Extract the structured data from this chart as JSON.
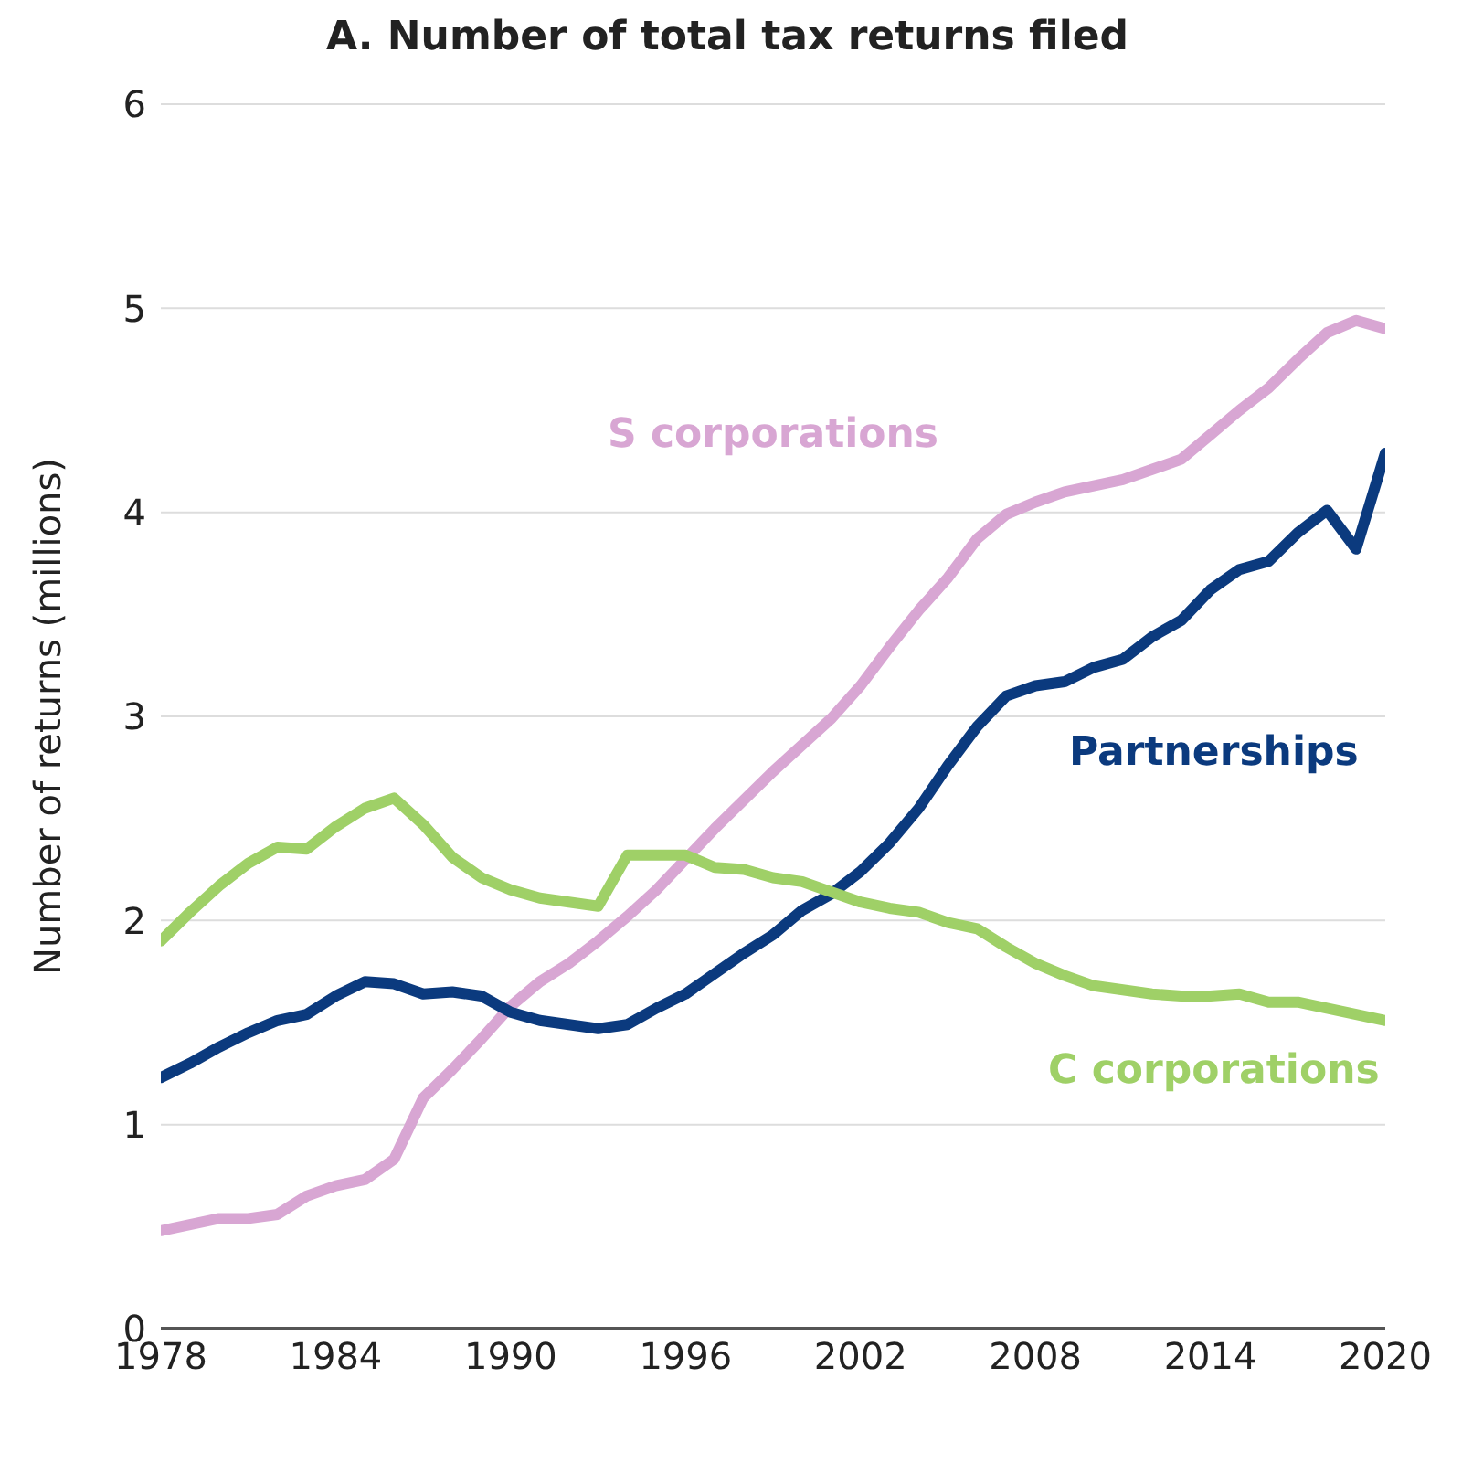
{
  "chart_data": {
    "type": "line",
    "title": "A. Number of total tax returns filed",
    "ylabel": "Number of returns (millions)",
    "x": [
      1978,
      1979,
      1980,
      1981,
      1982,
      1983,
      1984,
      1985,
      1986,
      1987,
      1988,
      1989,
      1990,
      1991,
      1992,
      1993,
      1994,
      1995,
      1996,
      1997,
      1998,
      1999,
      2000,
      2001,
      2002,
      2003,
      2004,
      2005,
      2006,
      2007,
      2008,
      2009,
      2010,
      2011,
      2012,
      2013,
      2014,
      2015,
      2016,
      2017,
      2018,
      2019,
      2020
    ],
    "series": [
      {
        "name": "S corporations",
        "color": "#d8a6d3",
        "values": [
          0.48,
          0.51,
          0.54,
          0.54,
          0.56,
          0.65,
          0.7,
          0.73,
          0.83,
          1.13,
          1.27,
          1.42,
          1.58,
          1.7,
          1.79,
          1.9,
          2.02,
          2.15,
          2.3,
          2.45,
          2.59,
          2.73,
          2.86,
          2.99,
          3.15,
          3.34,
          3.52,
          3.68,
          3.87,
          3.99,
          4.05,
          4.1,
          4.13,
          4.16,
          4.21,
          4.26,
          4.38,
          4.5,
          4.61,
          4.75,
          4.88,
          4.94,
          4.9
        ]
      },
      {
        "name": "Partnerships",
        "color": "#0b3a7e",
        "values": [
          1.23,
          1.3,
          1.38,
          1.45,
          1.51,
          1.54,
          1.63,
          1.7,
          1.69,
          1.64,
          1.65,
          1.63,
          1.55,
          1.51,
          1.49,
          1.47,
          1.49,
          1.57,
          1.64,
          1.74,
          1.84,
          1.93,
          2.05,
          2.13,
          2.24,
          2.38,
          2.55,
          2.76,
          2.95,
          3.1,
          3.15,
          3.17,
          3.24,
          3.28,
          3.39,
          3.47,
          3.62,
          3.72,
          3.76,
          3.9,
          4.01,
          3.82,
          4.29
        ]
      },
      {
        "name": "C corporations",
        "color": "#9fd067",
        "values": [
          1.9,
          2.04,
          2.17,
          2.28,
          2.36,
          2.35,
          2.46,
          2.55,
          2.6,
          2.47,
          2.31,
          2.21,
          2.15,
          2.11,
          2.09,
          2.07,
          2.32,
          2.32,
          2.32,
          2.26,
          2.25,
          2.21,
          2.19,
          2.14,
          2.09,
          2.06,
          2.04,
          1.99,
          1.96,
          1.87,
          1.79,
          1.73,
          1.68,
          1.66,
          1.64,
          1.63,
          1.63,
          1.64,
          1.6,
          1.6,
          1.57,
          1.54,
          1.51
        ]
      }
    ],
    "xlim": [
      1978,
      2020
    ],
    "xticks": [
      1978,
      1984,
      1990,
      1996,
      2002,
      2008,
      2014,
      2020
    ],
    "ylim": [
      0,
      6
    ],
    "yticks": [
      0,
      1,
      2,
      3,
      4,
      5,
      6
    ],
    "grid": "y",
    "legend": false,
    "marker": "none",
    "line_style": "solid"
  }
}
